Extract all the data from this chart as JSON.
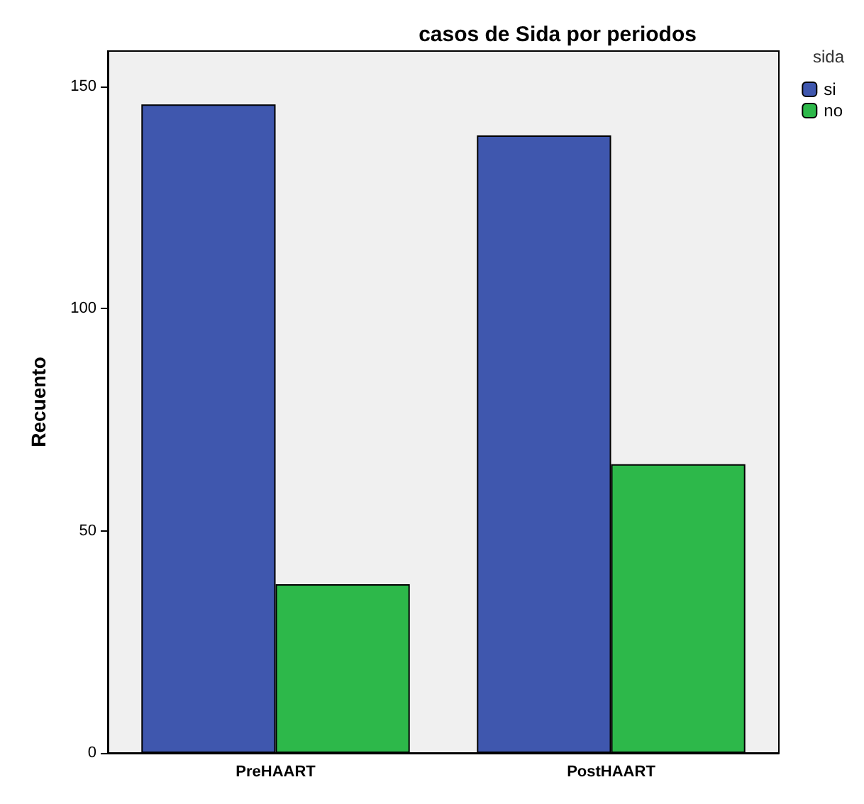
{
  "chart_data": {
    "type": "bar",
    "title": "casos de Sida por periodos",
    "ylabel": "Recuento",
    "legend_title": "sida",
    "categories": [
      "PreHAART",
      "PostHAART"
    ],
    "series": [
      {
        "name": "si",
        "color": "#3f57ae",
        "values": [
          146,
          139
        ]
      },
      {
        "name": "no",
        "color": "#2db84a",
        "values": [
          38,
          65
        ]
      }
    ],
    "ylim": [
      0,
      158
    ],
    "yticks": [
      0,
      50,
      100,
      150
    ],
    "grid": false,
    "legend": "top right"
  }
}
